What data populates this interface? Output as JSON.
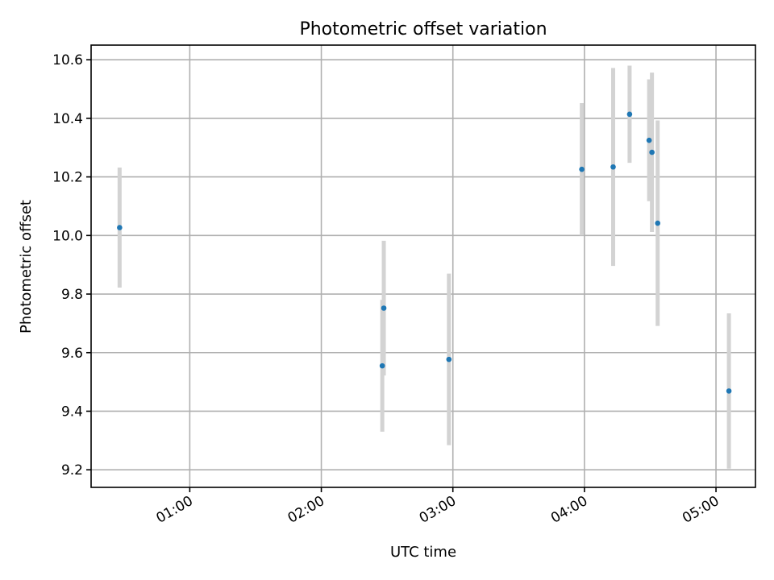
{
  "chart_data": {
    "type": "scatter",
    "title": "Photometric offset variation",
    "xlabel": "UTC time",
    "ylabel": "Photometric offset",
    "x_axis_unit": "minutes since 00:00 UTC",
    "xlim": [
      15,
      318
    ],
    "ylim": [
      9.14,
      10.65
    ],
    "x_ticks": [
      {
        "value": 60,
        "label": "01:00"
      },
      {
        "value": 120,
        "label": "02:00"
      },
      {
        "value": 180,
        "label": "03:00"
      },
      {
        "value": 240,
        "label": "04:00"
      },
      {
        "value": 300,
        "label": "05:00"
      }
    ],
    "y_ticks": [
      {
        "value": 9.2,
        "label": "9.2"
      },
      {
        "value": 9.4,
        "label": "9.4"
      },
      {
        "value": 9.6,
        "label": "9.6"
      },
      {
        "value": 9.8,
        "label": "9.8"
      },
      {
        "value": 10.0,
        "label": "10.0"
      },
      {
        "value": 10.2,
        "label": "10.2"
      },
      {
        "value": 10.4,
        "label": "10.4"
      },
      {
        "value": 10.6,
        "label": "10.6"
      }
    ],
    "grid": true,
    "marker_color": "#1f77b4",
    "errorbar_color": "#d3d3d3",
    "points": [
      {
        "x": 28.0,
        "y": 10.027,
        "err": 0.205
      },
      {
        "x": 147.8,
        "y": 9.555,
        "err": 0.225
      },
      {
        "x": 148.5,
        "y": 9.752,
        "err": 0.23
      },
      {
        "x": 178.2,
        "y": 9.577,
        "err": 0.293
      },
      {
        "x": 238.8,
        "y": 10.226,
        "err": 0.226
      },
      {
        "x": 253.1,
        "y": 10.234,
        "err": 0.338
      },
      {
        "x": 260.6,
        "y": 10.414,
        "err": 0.166
      },
      {
        "x": 269.5,
        "y": 10.325,
        "err": 0.208
      },
      {
        "x": 270.8,
        "y": 10.284,
        "err": 0.272
      },
      {
        "x": 273.4,
        "y": 10.042,
        "err": 0.351
      },
      {
        "x": 305.9,
        "y": 9.469,
        "err": 0.265
      }
    ]
  }
}
